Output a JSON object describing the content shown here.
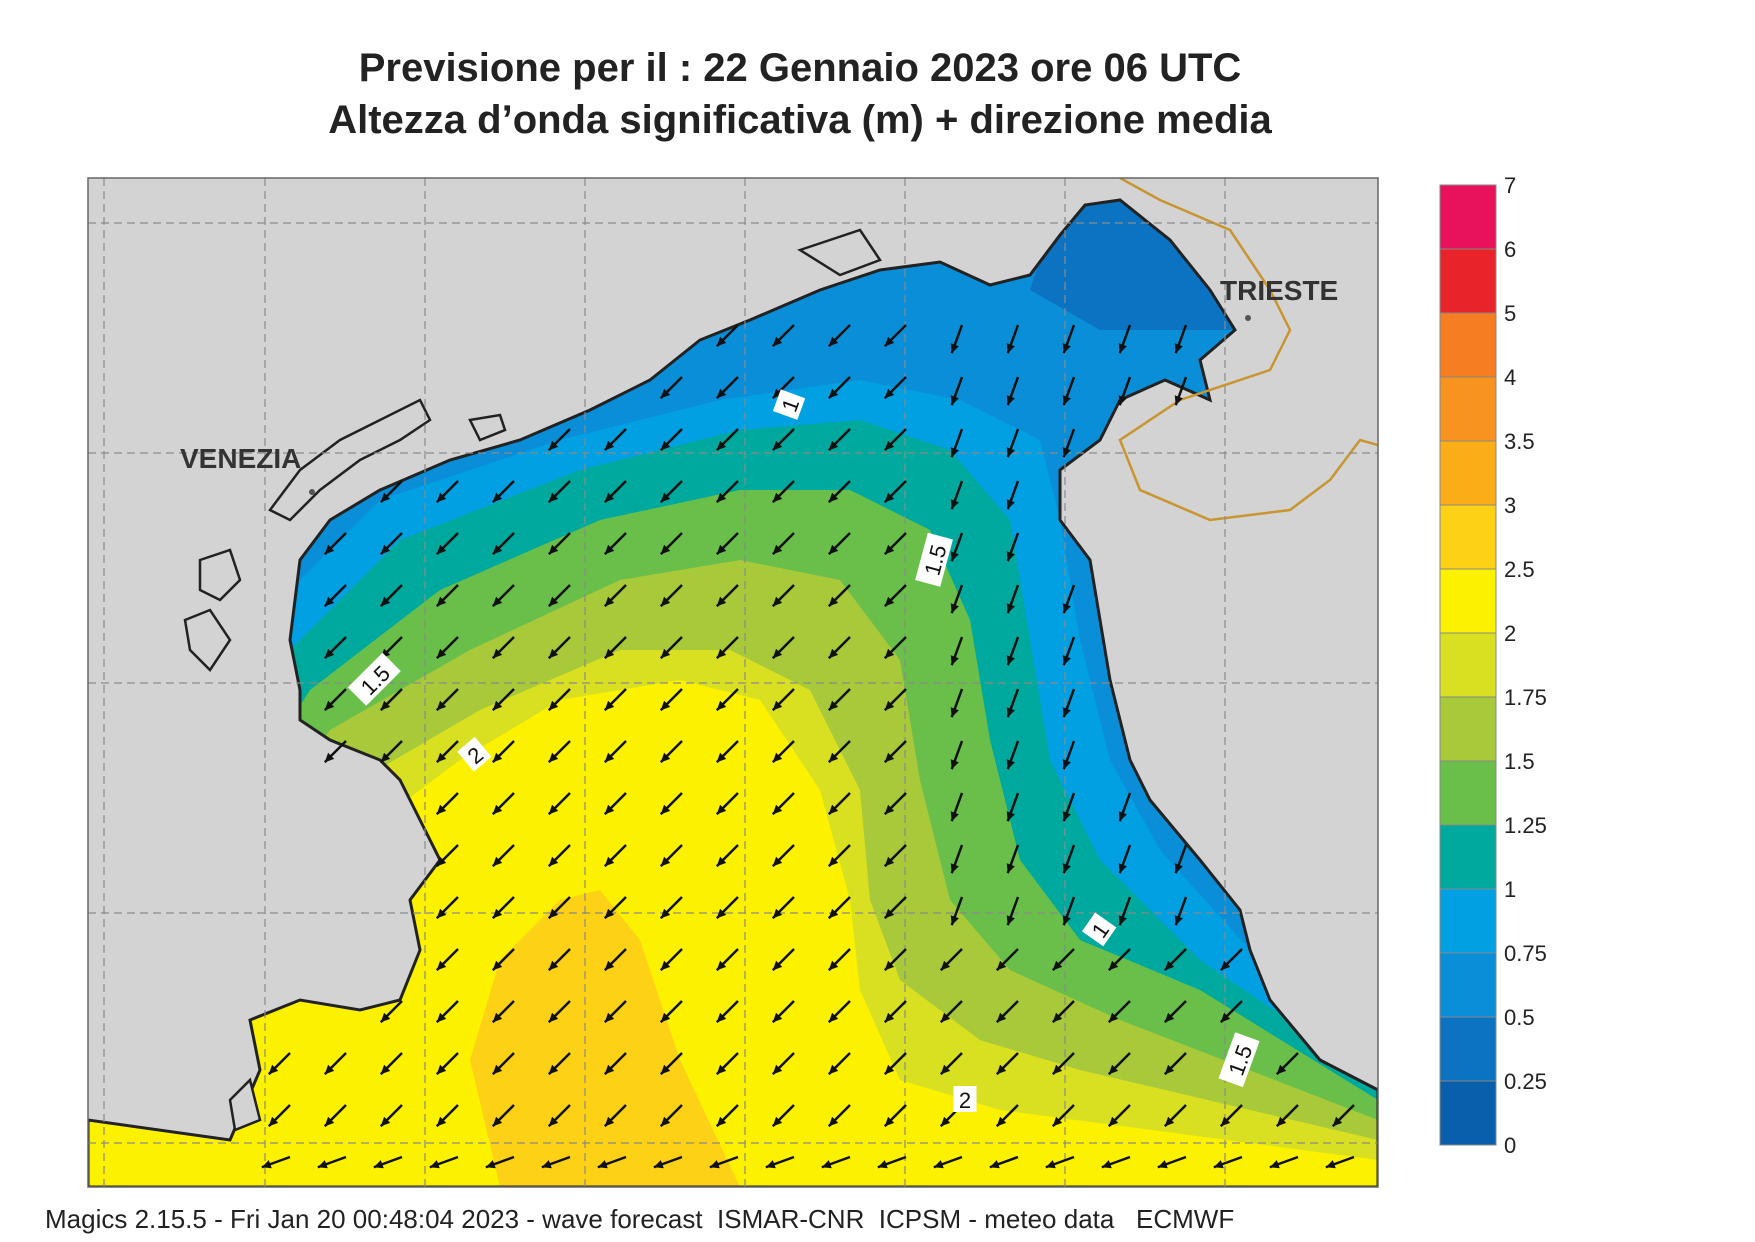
{
  "title_line1": "Previsione per il  :  22  Gennaio  2023   ore 06 UTC",
  "title_line2": "Altezza d’onda significativa (m) + direzione media",
  "footer": "Magics 2.15.5 - Fri Jan 20 00:48:04 2023 - wave forecast  ISMAR-CNR  ICPSM - meteo data   ECMWF",
  "map": {
    "city_labels": [
      "VENEZIA",
      "TRIESTE"
    ],
    "contour_labels": [
      "1",
      "1.5",
      "1.5",
      "2",
      "1",
      "2",
      "1.5"
    ],
    "land_color": "#d3d3d3",
    "border_color": "#c8952e",
    "arrow_direction": "towards south-west"
  },
  "legend": {
    "ticks": [
      "7",
      "6",
      "5",
      "4",
      "3.5",
      "3",
      "2.5",
      "2",
      "1.75",
      "1.5",
      "1.25",
      "1",
      "0.75",
      "0.5",
      "0.25",
      "0"
    ],
    "colors": [
      "#e8125c",
      "#e8232a",
      "#f57d22",
      "#f7931e",
      "#fbad18",
      "#fcd116",
      "#fcf200",
      "#d9e021",
      "#a7c93a",
      "#6abf4b",
      "#00a99d",
      "#00a0e3",
      "#0a8ed8",
      "#0c73c2",
      "#0a5fad"
    ]
  }
}
